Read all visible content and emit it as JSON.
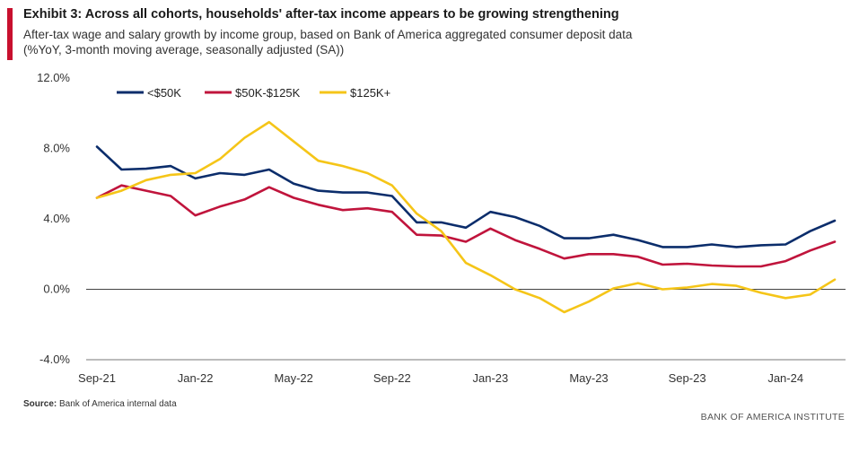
{
  "header": {
    "title": "Exhibit 3: Across all cohorts, households' after-tax income appears to be growing strengthening",
    "subtitle_line1": "After-tax wage and salary growth by income group, based on Bank of America aggregated consumer deposit data",
    "subtitle_line2": "(%YoY, 3-month moving average, seasonally adjusted (SA))",
    "accent_color": "#c8102e"
  },
  "footer": {
    "source_label": "Source:",
    "source_text": "Bank of America internal data",
    "brand": "BANK OF AMERICA INSTITUTE"
  },
  "chart_data": {
    "type": "line",
    "x": [
      "Sep-21",
      "Oct-21",
      "Nov-21",
      "Dec-21",
      "Jan-22",
      "Feb-22",
      "Mar-22",
      "Apr-22",
      "May-22",
      "Jun-22",
      "Jul-22",
      "Aug-22",
      "Sep-22",
      "Oct-22",
      "Nov-22",
      "Dec-22",
      "Jan-23",
      "Feb-23",
      "Mar-23",
      "Apr-23",
      "May-23",
      "Jun-23",
      "Jul-23",
      "Aug-23",
      "Sep-23",
      "Oct-23",
      "Nov-23",
      "Dec-23",
      "Jan-24",
      "Feb-24",
      "Mar-24"
    ],
    "x_tick_labels": [
      "Sep-21",
      "Jan-22",
      "May-22",
      "Sep-22",
      "Jan-23",
      "May-23",
      "Sep-23",
      "Jan-24"
    ],
    "y_tick_labels": [
      "12.0%",
      "8.0%",
      "4.0%",
      "0.0%",
      "-4.0%"
    ],
    "y_ticks": [
      12,
      8,
      4,
      0,
      -4
    ],
    "ylim": [
      -4,
      12
    ],
    "series": [
      {
        "name": "<$50K",
        "color": "#0b2d6b",
        "values": [
          8.1,
          6.8,
          6.85,
          7.0,
          6.3,
          6.6,
          6.5,
          6.8,
          6.0,
          5.6,
          5.5,
          5.5,
          5.3,
          3.8,
          3.8,
          3.5,
          4.4,
          4.1,
          3.6,
          2.9,
          2.9,
          3.1,
          2.8,
          2.4,
          2.4,
          2.55,
          2.4,
          2.5,
          2.55,
          3.3,
          3.9
        ]
      },
      {
        "name": "$50K-$125K",
        "color": "#c0143c",
        "values": [
          5.2,
          5.9,
          5.6,
          5.3,
          4.2,
          4.7,
          5.1,
          5.8,
          5.2,
          4.8,
          4.5,
          4.6,
          4.4,
          3.1,
          3.05,
          2.7,
          3.45,
          2.8,
          2.3,
          1.75,
          2.0,
          2.0,
          1.85,
          1.4,
          1.45,
          1.35,
          1.3,
          1.3,
          1.6,
          2.2,
          2.7
        ]
      },
      {
        "name": "$125K+",
        "color": "#f5c518",
        "values": [
          5.2,
          5.6,
          6.2,
          6.5,
          6.6,
          7.4,
          8.6,
          9.5,
          8.4,
          7.3,
          7.0,
          6.6,
          5.9,
          4.3,
          3.3,
          1.5,
          0.8,
          0.0,
          -0.5,
          -1.3,
          -0.7,
          0.05,
          0.35,
          0.0,
          0.1,
          0.3,
          0.2,
          -0.2,
          -0.5,
          -0.3,
          0.55
        ]
      }
    ],
    "legend_position": "top-left",
    "grid": false
  }
}
